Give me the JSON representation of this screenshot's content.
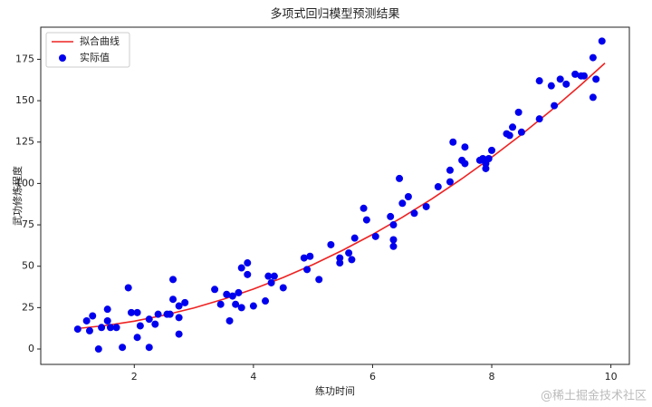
{
  "chart_data": {
    "type": "scatter",
    "title": "多项式回归模型预测结果",
    "x_label": "练功时间",
    "y_label": "武功修炼程度",
    "watermark": "@稀土掘金技术社区",
    "xlim": [
      0.43,
      10.31
    ],
    "ylim": [
      -9.3,
      194.4
    ],
    "xticks": [
      2,
      4,
      6,
      8,
      10
    ],
    "yticks": [
      0,
      25,
      50,
      75,
      100,
      125,
      150,
      175
    ],
    "legend": "upper-left",
    "series": [
      {
        "name": "拟合曲线",
        "type": "line",
        "color": "#ee2222",
        "x": [
          1,
          1.5,
          2,
          2.5,
          3,
          3.5,
          4,
          4.5,
          5,
          5.5,
          6,
          6.5,
          7,
          7.5,
          8,
          8.5,
          9,
          9.5,
          9.9
        ],
        "values": [
          12.2,
          14.1,
          16.8,
          20.4,
          24.8,
          30.1,
          36.2,
          43.2,
          51,
          59.7,
          69.2,
          79.6,
          90.8,
          102.9,
          115.8,
          129.6,
          144.2,
          159.7,
          172.7
        ]
      },
      {
        "name": "实际值",
        "type": "scatter",
        "color": "#0000ee",
        "x": [
          1.05,
          1.2,
          1.25,
          1.3,
          1.4,
          1.45,
          1.55,
          1.55,
          1.6,
          1.7,
          1.8,
          1.9,
          1.95,
          2.05,
          2.05,
          2.1,
          2.25,
          2.25,
          2.35,
          2.4,
          2.55,
          2.6,
          2.65,
          2.65,
          2.75,
          2.75,
          2.75,
          2.85,
          3.35,
          3.45,
          3.55,
          3.6,
          3.65,
          3.7,
          3.75,
          3.8,
          3.8,
          3.9,
          3.9,
          4.0,
          4.2,
          4.25,
          4.3,
          4.35,
          4.5,
          4.85,
          4.9,
          4.95,
          5.1,
          5.3,
          5.45,
          5.45,
          5.6,
          5.65,
          5.7,
          5.85,
          5.9,
          6.05,
          6.3,
          6.35,
          6.35,
          6.35,
          6.45,
          6.5,
          6.6,
          6.7,
          6.9,
          7.1,
          7.3,
          7.3,
          7.35,
          7.5,
          7.55,
          7.55,
          7.8,
          7.85,
          7.9,
          7.9,
          7.95,
          8.0,
          8.25,
          8.3,
          8.35,
          8.45,
          8.5,
          8.8,
          8.8,
          9.0,
          9.05,
          9.15,
          9.25,
          9.4,
          9.5,
          9.55,
          9.7,
          9.7,
          9.75,
          9.85
        ],
        "values": [
          12,
          17,
          11,
          20,
          0,
          13,
          24,
          17,
          13,
          13,
          1,
          37,
          22,
          7,
          22,
          14,
          18,
          1,
          15,
          21,
          21,
          21,
          42,
          30,
          9,
          26,
          19,
          28,
          36,
          27,
          33,
          17,
          32,
          27,
          34,
          25,
          49,
          45,
          52,
          26,
          29,
          44,
          40,
          44,
          37,
          55,
          48,
          56,
          42,
          63,
          52,
          55,
          58,
          54,
          67,
          85,
          78,
          68,
          80,
          62,
          66,
          75,
          103,
          88,
          92,
          82,
          86,
          98,
          101,
          108,
          125,
          114,
          122,
          112,
          114,
          115,
          109,
          112,
          115,
          120,
          130,
          129,
          134,
          143,
          131,
          139,
          162,
          159,
          147,
          163,
          160,
          166,
          165,
          165,
          152,
          176,
          163,
          186
        ]
      }
    ]
  }
}
